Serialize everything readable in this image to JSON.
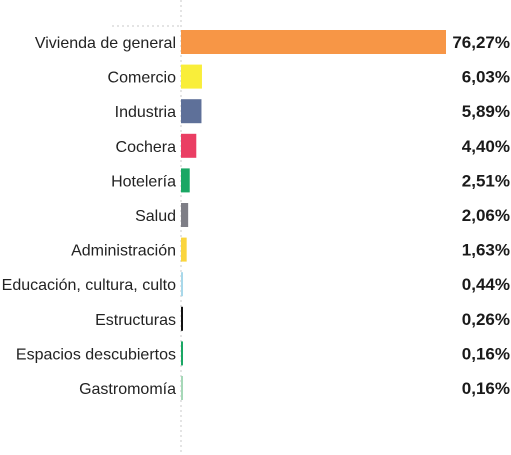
{
  "chart_data": {
    "type": "bar",
    "orientation": "horizontal",
    "categories": [
      "Vivienda de general",
      "Comercio",
      "Industria",
      "Cochera",
      "Hotelería",
      "Salud",
      "Administración",
      "Educación, cultura, culto",
      "Estructuras",
      "Espacios descubiertos",
      "Gastromomía"
    ],
    "values": [
      76.27,
      6.03,
      5.89,
      4.4,
      2.51,
      2.06,
      1.63,
      0.44,
      0.26,
      0.16,
      0.16
    ],
    "value_labels": [
      "76,27%",
      "6,03%",
      "5,89%",
      "4,40%",
      "2,51%",
      "2,06%",
      "1,63%",
      "0,44%",
      "0,26%",
      "0,16%",
      "0,16%"
    ],
    "colors": [
      "#f79646",
      "#f9ee3a",
      "#5e7099",
      "#ea3e63",
      "#1aa764",
      "#7e7e86",
      "#fad53e",
      "#a8d8ea",
      "#111111",
      "#1aa764",
      "#a6d8b8"
    ],
    "xlim": [
      0,
      76.27
    ],
    "grid": false,
    "legend": "none"
  }
}
